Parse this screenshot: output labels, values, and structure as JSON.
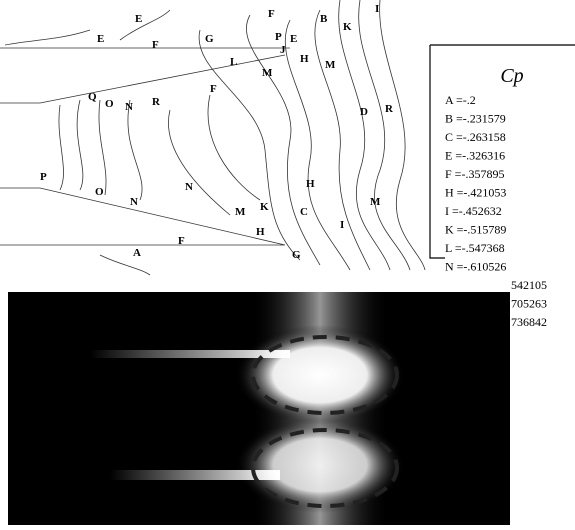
{
  "legend": {
    "title": "Cp",
    "entries": [
      "A =-.2",
      "B =-.231579",
      "C =-.263158",
      "E =-.326316",
      "F =-.357895",
      "H =-.421053",
      "I =-.452632",
      "K =-.515789",
      "L =-.547368",
      "N =-.610526"
    ],
    "clipped_entries": [
      "542105",
      "705263",
      "736842"
    ]
  },
  "contour_labels": [
    "E",
    "E",
    "F",
    "G",
    "F",
    "B",
    "I",
    "P",
    "E",
    "K",
    "J",
    "H",
    "M",
    "L",
    "M",
    "F",
    "D",
    "R",
    "Q",
    "O",
    "N",
    "R",
    "P",
    "O",
    "N",
    "N",
    "M",
    "K",
    "C",
    "H",
    "M",
    "I",
    "H",
    "G",
    "F",
    "A"
  ]
}
